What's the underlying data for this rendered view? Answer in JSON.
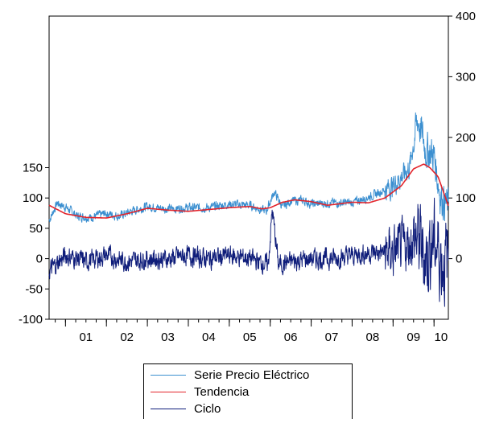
{
  "chart_data": {
    "type": "line",
    "title": "",
    "xlabel": "",
    "ylabel": "",
    "x_tick_labels": [
      "01",
      "02",
      "03",
      "04",
      "05",
      "06",
      "07",
      "08",
      "09",
      "10"
    ],
    "x_range": [
      2000.6,
      2010.35
    ],
    "left_axis": {
      "ylim": [
        -100,
        400
      ],
      "ticks": [
        150,
        100,
        50,
        0,
        -50,
        -100
      ]
    },
    "right_axis": {
      "ylim": [
        -100,
        400
      ],
      "ticks": [
        400,
        300,
        200,
        100,
        0
      ],
      "tick_values": [
        400,
        300,
        200,
        100,
        0
      ]
    },
    "series": [
      {
        "name": "Serie Precio Eléctrico",
        "color": "#3b8fd0",
        "axis": "left",
        "noise": 8,
        "x": [
          2000.6,
          2000.8,
          2001.0,
          2001.3,
          2001.6,
          2002.0,
          2002.3,
          2002.6,
          2003.0,
          2003.5,
          2004.0,
          2004.5,
          2005.0,
          2005.5,
          2005.9,
          2006.1,
          2006.3,
          2006.5,
          2006.8,
          2007.0,
          2007.5,
          2008.0,
          2008.5,
          2009.0,
          2009.4,
          2009.6,
          2009.8,
          2010.0,
          2010.15,
          2010.35
        ],
        "y": [
          63,
          92,
          85,
          70,
          68,
          75,
          70,
          78,
          86,
          82,
          84,
          84,
          90,
          88,
          78,
          110,
          85,
          95,
          96,
          90,
          92,
          92,
          104,
          120,
          150,
          230,
          180,
          170,
          105,
          85
        ]
      },
      {
        "name": "Tendencia",
        "color": "#e3242b",
        "axis": "left",
        "noise": 0,
        "x": [
          2000.6,
          2001.0,
          2001.5,
          2002.0,
          2002.5,
          2003.0,
          2003.5,
          2004.0,
          2004.5,
          2005.0,
          2005.5,
          2005.8,
          2006.0,
          2006.3,
          2006.6,
          2007.0,
          2007.4,
          2008.0,
          2008.4,
          2008.8,
          2009.2,
          2009.5,
          2009.75,
          2009.9,
          2010.1,
          2010.35
        ],
        "y": [
          88,
          74,
          68,
          67,
          74,
          83,
          80,
          78,
          81,
          84,
          86,
          82,
          84,
          93,
          97,
          94,
          88,
          93,
          92,
          100,
          120,
          148,
          156,
          150,
          135,
          87
        ]
      },
      {
        "name": "Ciclo",
        "color": "#0f1d7a",
        "axis": "right",
        "noise": 18,
        "x": [
          2000.6,
          2001.0,
          2001.5,
          2002.0,
          2002.5,
          2003.0,
          2003.5,
          2004.0,
          2004.5,
          2005.0,
          2005.5,
          2005.95,
          2006.05,
          2006.2,
          2006.5,
          2007.0,
          2007.5,
          2008.0,
          2008.5,
          2009.0,
          2009.3,
          2009.6,
          2009.8,
          2010.0,
          2010.2,
          2010.35
        ],
        "y": [
          -20,
          5,
          -5,
          5,
          -5,
          0,
          0,
          5,
          0,
          5,
          0,
          -10,
          80,
          -10,
          -5,
          0,
          0,
          5,
          10,
          10,
          20,
          35,
          0,
          30,
          -5,
          0
        ]
      }
    ],
    "legend_position": "bottom-center",
    "grid": false
  }
}
